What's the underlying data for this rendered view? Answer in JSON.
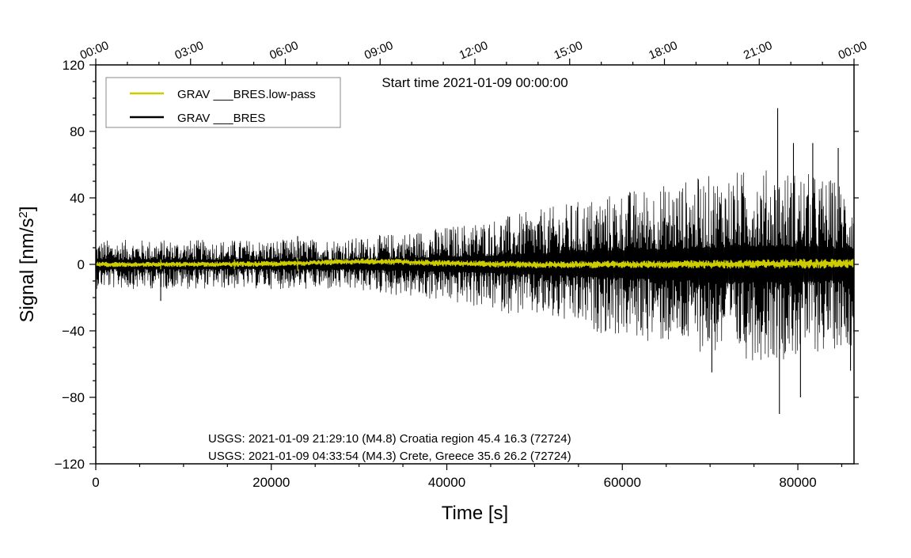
{
  "chart_data": {
    "type": "line",
    "title": "",
    "xlabel": "Time [s]",
    "ylabel_prefix": "Signal [nm/s",
    "ylabel_sup": "2",
    "ylabel_suffix": "]",
    "xlim": [
      0,
      86400
    ],
    "ylim": [
      -120,
      120
    ],
    "x_ticks": [
      0,
      20000,
      40000,
      60000,
      80000
    ],
    "x_tick_labels": [
      "0",
      "20000",
      "40000",
      "60000",
      "80000"
    ],
    "y_ticks": [
      -120,
      -80,
      -40,
      0,
      40,
      80,
      120
    ],
    "y_tick_labels": [
      "−120",
      "−80",
      "−40",
      "0",
      "40",
      "80",
      "120"
    ],
    "top_axis": {
      "ticks": [
        0,
        10800,
        21600,
        32400,
        43200,
        54000,
        64800,
        75600,
        86400
      ],
      "labels": [
        "00:00",
        "03:00",
        "06:00",
        "09:00",
        "12:00",
        "15:00",
        "18:00",
        "21:00",
        "00:00"
      ]
    },
    "start_time_label": "Start time 2021-01-09 00:00:00",
    "legend": {
      "placement": "top-left",
      "entries": [
        {
          "label": "GRAV ___BRES.low-pass",
          "color": "#cccc00"
        },
        {
          "label": "GRAV ___BRES",
          "color": "#000000"
        }
      ]
    },
    "series": [
      {
        "name": "GRAV ___BRES",
        "color": "#000000",
        "envelope": {
          "x": [
            0,
            10000,
            20000,
            30000,
            40000,
            50000,
            60000,
            65000,
            70000,
            75000,
            80000,
            86400
          ],
          "amplitude": [
            11,
            11,
            11,
            12,
            17,
            24,
            33,
            36,
            40,
            43,
            42,
            36
          ]
        },
        "spikes": [
          {
            "x": 7400,
            "y": -22
          },
          {
            "x": 23000,
            "y": 17
          },
          {
            "x": 70200,
            "y": -65
          },
          {
            "x": 77700,
            "y": 94
          },
          {
            "x": 77900,
            "y": -90
          },
          {
            "x": 79500,
            "y": 73
          },
          {
            "x": 80300,
            "y": -80
          },
          {
            "x": 81700,
            "y": 73
          },
          {
            "x": 84600,
            "y": 70
          },
          {
            "x": 86000,
            "y": -64
          }
        ]
      },
      {
        "name": "GRAV ___BRES.low-pass",
        "color": "#cccc00",
        "envelope": {
          "x": [
            0,
            10000,
            20000,
            30000,
            40000,
            50000,
            60000,
            70000,
            80000,
            86400
          ],
          "amplitude": [
            1.2,
            1.2,
            1.3,
            1.4,
            1.5,
            1.6,
            1.7,
            2.0,
            2.3,
            2.2
          ]
        },
        "baseline": {
          "x": [
            0,
            10000,
            20000,
            25000,
            30000,
            35000,
            40000,
            50000,
            60000,
            70000,
            80000,
            86400
          ],
          "y": [
            0,
            0,
            0.3,
            1.0,
            1.8,
            1.4,
            0.6,
            -0.3,
            0,
            0,
            0.4,
            0.6
          ]
        },
        "spikes": [
          {
            "x": 7400,
            "y": -3
          },
          {
            "x": 15800,
            "y": -3
          },
          {
            "x": 23000,
            "y": 4
          }
        ]
      }
    ],
    "annotations": [
      "USGS: 2021-01-09 21:29:10 (M4.8) Croatia region 45.4 16.3 (72724)",
      "USGS: 2021-01-09 04:33:54 (M4.3) Crete, Greece 35.6 26.2 (72724)"
    ]
  }
}
